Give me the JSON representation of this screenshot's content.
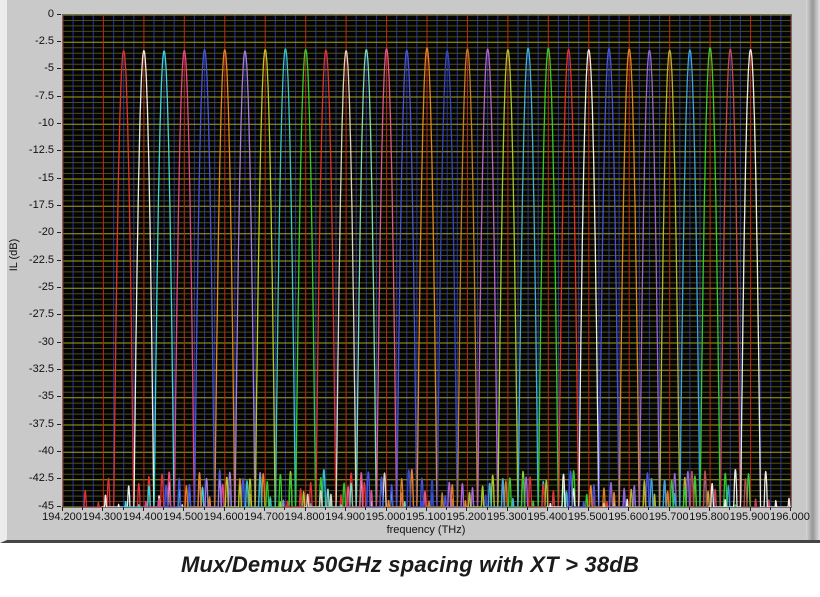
{
  "caption": {
    "text": "Mux/Demux 50GHz spacing with XT > 38dB"
  },
  "chart_data": {
    "type": "line",
    "title": "Mux/Demux 50GHz spacing with XT > 38dB",
    "xlabel": "frequency (THz)",
    "ylabel": "IL (dB)",
    "xlim": [
      194.2,
      196.0
    ],
    "ylim": [
      -45,
      0
    ],
    "x_ticks": [
      194.2,
      194.3,
      194.4,
      194.5,
      194.6,
      194.7,
      194.8,
      194.9,
      195.0,
      195.1,
      195.2,
      195.3,
      195.4,
      195.5,
      195.6,
      195.7,
      195.8,
      195.9,
      196.0
    ],
    "x_tick_labels": [
      "194.200",
      "194.300",
      "194.400",
      "194.500",
      "194.600",
      "194.700",
      "194.800",
      "194.900",
      "195.000",
      "195.100",
      "195.200",
      "195.300",
      "195.400",
      "195.500",
      "195.600",
      "195.700",
      "195.800",
      "195.900",
      "196.000"
    ],
    "y_ticks": [
      0,
      -2.5,
      -5,
      -7.5,
      -10,
      -12.5,
      -15,
      -17.5,
      -20,
      -22.5,
      -25,
      -27.5,
      -30,
      -32.5,
      -35,
      -37.5,
      -40,
      -42.5,
      -45
    ],
    "y_tick_labels": [
      "0",
      "-2.5",
      "-5",
      "-7.5",
      "-10",
      "-12.5",
      "-15",
      "-17.5",
      "-20",
      "-22.5",
      "-25",
      "-27.5",
      "-30",
      "-32.5",
      "-35",
      "-37.5",
      "-40",
      "-42.5",
      "-45"
    ],
    "grid": {
      "background": "#050505",
      "major_h_color": "#a8a408",
      "minor_h_color": "#4e4e12",
      "major_v_color": "#c0281c",
      "minor_v_color": "#2433ad",
      "major_h_step_dB": 2.5,
      "minor_h_step_dB": 0.5,
      "major_v_step_THz": 0.1,
      "minor_v_step_THz": 0.025,
      "legend": "off"
    },
    "channel_spacing_GHz": 50,
    "channel_count": 32,
    "peak_IL_dB": -3,
    "crosstalk_floor_dB": -42.5,
    "channels": [
      {
        "center_THz": 194.35,
        "color": "#e23232"
      },
      {
        "center_THz": 194.4,
        "color": "#ececec"
      },
      {
        "center_THz": 194.45,
        "color": "#3cd8dc"
      },
      {
        "center_THz": 194.5,
        "color": "#e0488c"
      },
      {
        "center_THz": 194.55,
        "color": "#4854e0"
      },
      {
        "center_THz": 194.6,
        "color": "#e08424"
      },
      {
        "center_THz": 194.65,
        "color": "#a47ce0"
      },
      {
        "center_THz": 194.7,
        "color": "#b4c828"
      },
      {
        "center_THz": 194.75,
        "color": "#38c4c8"
      },
      {
        "center_THz": 194.8,
        "color": "#32cc32"
      },
      {
        "center_THz": 194.85,
        "color": "#e23232"
      },
      {
        "center_THz": 194.9,
        "color": "#d8d2c6"
      },
      {
        "center_THz": 194.95,
        "color": "#7cd8bc"
      },
      {
        "center_THz": 195.0,
        "color": "#e0588c"
      },
      {
        "center_THz": 195.05,
        "color": "#4854e0"
      },
      {
        "center_THz": 195.1,
        "color": "#e08424"
      },
      {
        "center_THz": 195.15,
        "color": "#3448c8"
      },
      {
        "center_THz": 195.2,
        "color": "#c27c2a"
      },
      {
        "center_THz": 195.25,
        "color": "#b464d4"
      },
      {
        "center_THz": 195.3,
        "color": "#a4c832"
      },
      {
        "center_THz": 195.35,
        "color": "#40b0dc"
      },
      {
        "center_THz": 195.4,
        "color": "#32cc32"
      },
      {
        "center_THz": 195.45,
        "color": "#e23232"
      },
      {
        "center_THz": 195.5,
        "color": "#ececec"
      },
      {
        "center_THz": 195.55,
        "color": "#4854e0"
      },
      {
        "center_THz": 195.6,
        "color": "#e08424"
      },
      {
        "center_THz": 195.65,
        "color": "#9468d8"
      },
      {
        "center_THz": 195.7,
        "color": "#b4b434"
      },
      {
        "center_THz": 195.75,
        "color": "#3ca4e0"
      },
      {
        "center_THz": 195.8,
        "color": "#32cc32"
      },
      {
        "center_THz": 195.85,
        "color": "#c44858"
      },
      {
        "center_THz": 195.9,
        "color": "#ececec"
      }
    ],
    "response_model": {
      "skirt_width_THz": 0.0245,
      "skirt_depth_dB": 42,
      "peak_ripple_dB": 0.3,
      "sidelobe_offsets_THz": [
        0.0375,
        0.0625,
        0.095
      ],
      "sidelobe_height_range_dB": [
        -44.8,
        -41.5
      ],
      "sidelobe_width_THz": 0.0115,
      "sidelobe_depth_dB": 30,
      "sample_step_THz": 0.0008,
      "trace_halfwidth_THz": 0.105
    }
  }
}
